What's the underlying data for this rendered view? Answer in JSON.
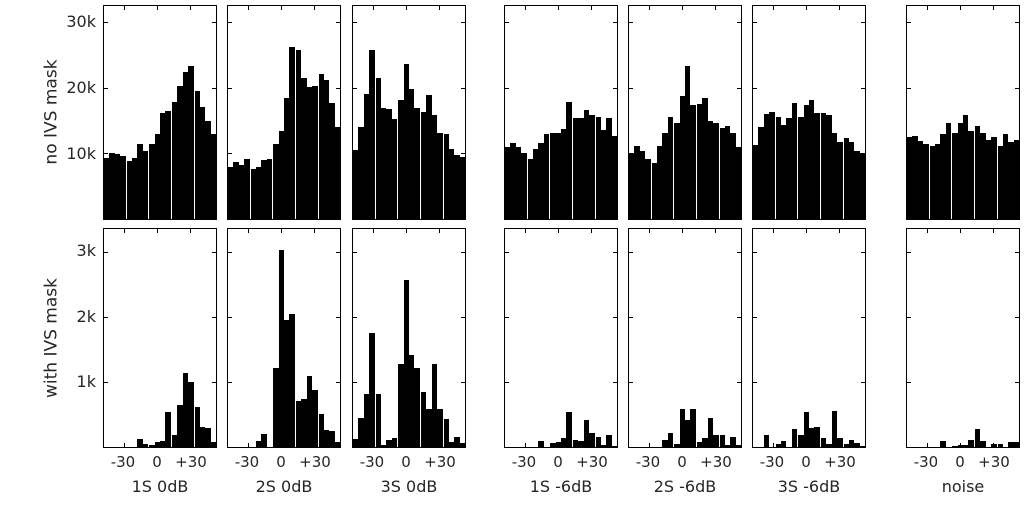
{
  "figure": {
    "row_labels": [
      "no IVS mask",
      "with IVS mask"
    ],
    "column_titles": [
      "1S 0dB",
      "2S 0dB",
      "3S 0dB",
      "1S -6dB",
      "2S -6dB",
      "3S -6dB",
      "noise"
    ],
    "x_tick_labels": [
      "-30",
      "0",
      "+30"
    ],
    "bar_color": "#000000",
    "text_color": "#262626",
    "background_color": "#ffffff"
  },
  "chart_data": {
    "type": "bar",
    "subtype": "histogram-grid",
    "layout_hint": "2 rows x 7 columns of histograms; columns grouped 3 (0dB) + 3 (-6dB) + 1 (noise); grid off; no legend; black filled bars",
    "x_axis": {
      "tick_labels": [
        "-30",
        "0",
        "+30"
      ],
      "tick_values": [
        -30,
        0,
        30
      ],
      "xlim": [
        -48,
        54
      ],
      "n_bins": 20
    },
    "rows": [
      {
        "label": "no IVS mask",
        "ytick_labels": [
          "10k",
          "20k",
          "30k"
        ],
        "ytick_values": [
          10000,
          20000,
          30000
        ],
        "ylim": [
          0,
          32500
        ],
        "panels": [
          {
            "title": "1S 0dB",
            "values": [
              9300,
              10000,
              9900,
              9600,
              8900,
              9300,
              11400,
              10400,
              11500,
              13000,
              16100,
              16500,
              17800,
              20300,
              22400,
              23400,
              19600,
              17100,
              15000,
              12900
            ]
          },
          {
            "title": "2S 0dB",
            "values": [
              8000,
              8700,
              8300,
              9100,
              7700,
              7900,
              9000,
              9100,
              11400,
              13500,
              18400,
              26300,
              25800,
              21500,
              20100,
              20300,
              22100,
              21200,
              17700,
              14000
            ]
          },
          {
            "title": "3S 0dB",
            "values": [
              10500,
              14100,
              19000,
              25800,
              21500,
              16900,
              16800,
              15200,
              18100,
              23700,
              19800,
              16900,
              16300,
              18900,
              15900,
              13200,
              13000,
              10700,
              9700,
              9500
            ]
          },
          {
            "title": "1S -6dB",
            "values": [
              11000,
              11600,
              11000,
              10000,
              9200,
              10700,
              11600,
              12900,
              13200,
              13100,
              13700,
              17800,
              15400,
              15400,
              16600,
              15900,
              15600,
              13600,
              15400,
              12700
            ]
          },
          {
            "title": "2S -6dB",
            "values": [
              10000,
              11100,
              10400,
              9200,
              8600,
              11100,
              13200,
              15600,
              14600,
              18700,
              23400,
              17400,
              17500,
              18500,
              15000,
              14700,
              13900,
              14200,
              13200,
              11000
            ]
          },
          {
            "title": "3S -6dB",
            "values": [
              11300,
              14100,
              16000,
              16300,
              15600,
              14300,
              15400,
              17700,
              15600,
              17400,
              18100,
              16200,
              16200,
              15900,
              13200,
              11700,
              12400,
              11700,
              10400,
              10000
            ]
          },
          {
            "title": "noise",
            "values": [
              12500,
              12700,
              11900,
              11500,
              11200,
              11500,
              12900,
              14600,
              13200,
              14700,
              15900,
              13400,
              14200,
              13200,
              12100,
              12500,
              11100,
              12900,
              11700,
              12000
            ]
          }
        ]
      },
      {
        "label": "with IVS mask",
        "ytick_labels": [
          "1k",
          "2k",
          "3k"
        ],
        "ytick_values": [
          1000,
          2000,
          3000
        ],
        "ylim": [
          0,
          3350
        ],
        "panels": [
          {
            "title": "1S 0dB",
            "values": [
              0,
              0,
              0,
              0,
              0,
              0,
              130,
              50,
              30,
              80,
              100,
              540,
              180,
              640,
              1140,
              1000,
              620,
              310,
              290,
              80
            ]
          },
          {
            "title": "2S 0dB",
            "values": [
              0,
              0,
              0,
              0,
              0,
              100,
              200,
              0,
              1220,
              3030,
              1950,
              2040,
              700,
              740,
              1090,
              870,
              500,
              260,
              240,
              70
            ]
          },
          {
            "title": "3S 0dB",
            "values": [
              130,
              440,
              820,
              1750,
              820,
              30,
              110,
              140,
              1270,
              2570,
              1420,
              1220,
              850,
              580,
              1270,
              580,
              430,
              80,
              160,
              60
            ]
          },
          {
            "title": "1S -6dB",
            "values": [
              0,
              0,
              0,
              0,
              0,
              0,
              100,
              0,
              60,
              80,
              140,
              540,
              110,
              100,
              410,
              210,
              150,
              30,
              190,
              10
            ]
          },
          {
            "title": "2S -6dB",
            "values": [
              0,
              0,
              0,
              0,
              0,
              0,
              110,
              210,
              50,
              580,
              410,
              590,
              80,
              140,
              440,
              190,
              190,
              30,
              150,
              30
            ]
          },
          {
            "title": "3S -6dB",
            "values": [
              0,
              0,
              180,
              0,
              50,
              90,
              0,
              280,
              190,
              540,
              290,
              300,
              140,
              50,
              550,
              140,
              50,
              110,
              60,
              20
            ]
          },
          {
            "title": "noise",
            "values": [
              0,
              0,
              0,
              0,
              0,
              0,
              90,
              0,
              20,
              30,
              30,
              110,
              280,
              100,
              0,
              50,
              40,
              0,
              80,
              80
            ]
          }
        ]
      }
    ]
  }
}
